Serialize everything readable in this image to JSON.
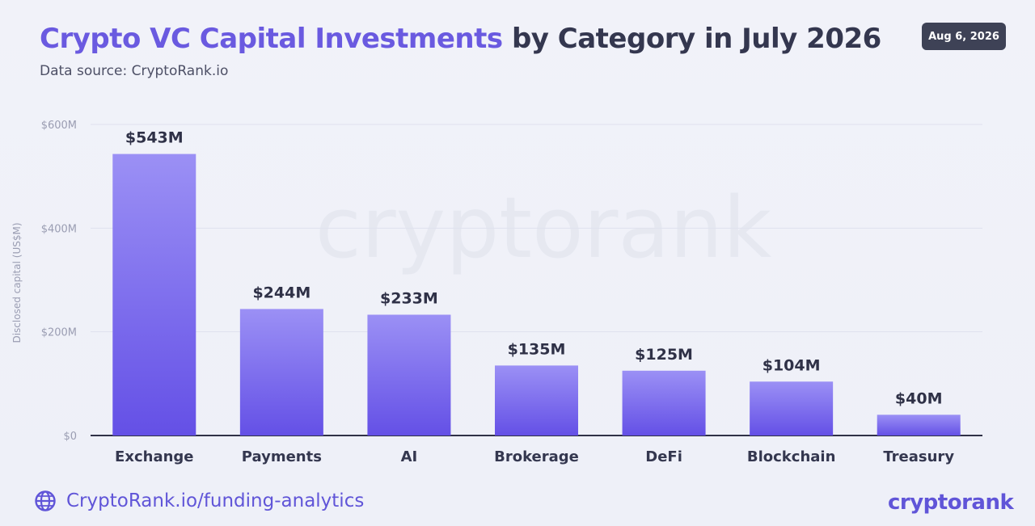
{
  "header": {
    "title_accent": "Crypto VC Capital Investments",
    "title_rest": " by Category in July 2026",
    "subtitle": "Data source: CryptoRank.io",
    "date_badge": "Aug 6, 2026"
  },
  "footer": {
    "url": "CryptoRank.io/funding-analytics",
    "logo": "cryptorank"
  },
  "watermark": "cryptorank",
  "colors": {
    "bar_top": "#9b90f5",
    "bar_bottom": "#6450e6",
    "accent": "#6a5ae0",
    "axis": "#2f3147",
    "grid": "#dfe1ee"
  },
  "chart_data": {
    "type": "bar",
    "categories": [
      "Exchange",
      "Payments",
      "AI",
      "Brokerage",
      "DeFi",
      "Blockchain",
      "Treasury"
    ],
    "values": [
      543,
      244,
      233,
      135,
      125,
      104,
      40
    ],
    "data_labels": [
      "$543M",
      "$244M",
      "$233M",
      "$135M",
      "$125M",
      "$104M",
      "$40M"
    ],
    "ylabel": "Disclosed capital (US$M)",
    "ylim": [
      0,
      600
    ],
    "yticks": [
      0,
      200,
      400,
      600
    ],
    "ytick_labels": [
      "$0",
      "$200M",
      "$400M",
      "$600M"
    ],
    "grid": true,
    "legend": "none"
  }
}
